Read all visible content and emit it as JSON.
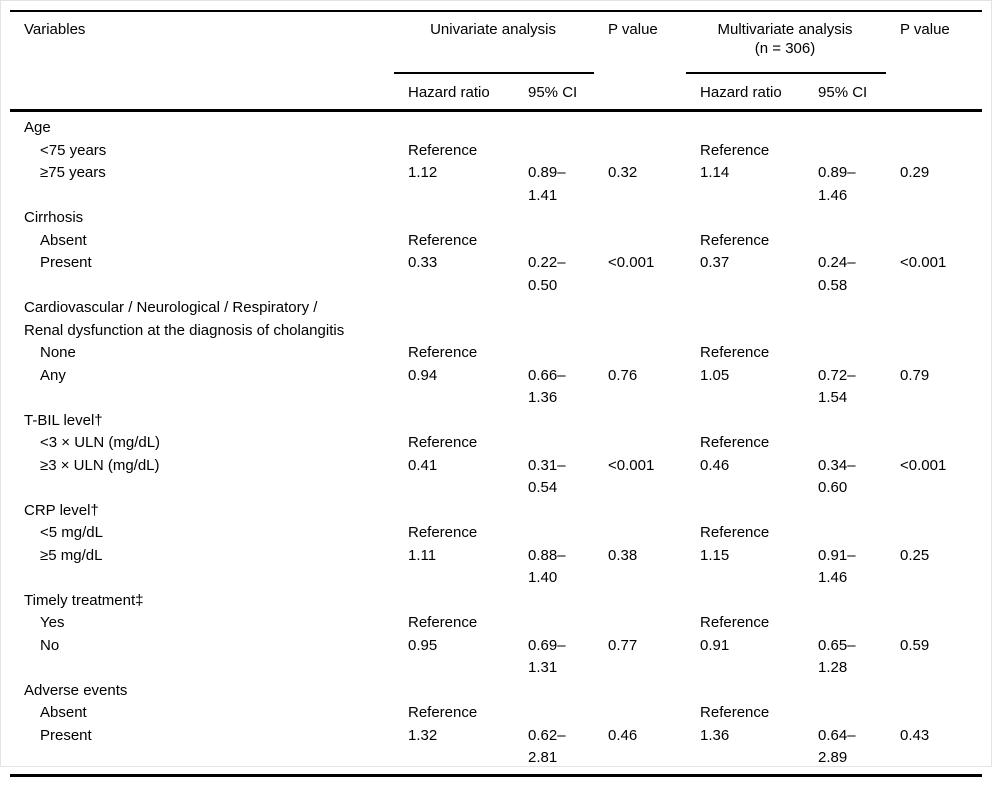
{
  "page": {
    "background_color": "#ffffff",
    "text_color": "#000000",
    "rule_color": "#000000"
  },
  "table": {
    "header": {
      "variables": "Variables",
      "univariate_group": "Univariate analysis",
      "p_value_univariate": "P value",
      "multivariate_group": "Multivariate analysis\n(n = 306)",
      "p_value_multivariate": "P value",
      "hazard_ratio_univariate": "Hazard ratio",
      "ci_univariate": "95% CI",
      "hazard_ratio_multivariate": "Hazard ratio",
      "ci_multivariate": "95% CI"
    },
    "sections": [
      {
        "label": "Age",
        "rows": [
          {
            "variable": "<75 years",
            "uni_hr": "Reference",
            "uni_ci": "",
            "uni_p": "",
            "multi_hr": "Reference",
            "multi_ci": "",
            "multi_p": ""
          },
          {
            "variable": "≥75 years",
            "uni_hr": "1.12",
            "uni_ci": "0.89–\n1.41",
            "uni_p": "0.32",
            "multi_hr": "1.14",
            "multi_ci": "0.89–\n1.46",
            "multi_p": "0.29"
          }
        ]
      },
      {
        "label": "Cirrhosis",
        "rows": [
          {
            "variable": "Absent",
            "uni_hr": "Reference",
            "uni_ci": "",
            "uni_p": "",
            "multi_hr": "Reference",
            "multi_ci": "",
            "multi_p": ""
          },
          {
            "variable": "Present",
            "uni_hr": "0.33",
            "uni_ci": "0.22–\n0.50",
            "uni_p": "<0.001",
            "multi_hr": "0.37",
            "multi_ci": "0.24–\n0.58",
            "multi_p": "<0.001"
          }
        ]
      },
      {
        "label": "Cardiovascular / Neurological / Respiratory /\nRenal dysfunction at the diagnosis of cholangitis",
        "rows": [
          {
            "variable": "None",
            "uni_hr": "Reference",
            "uni_ci": "",
            "uni_p": "",
            "multi_hr": "Reference",
            "multi_ci": "",
            "multi_p": ""
          },
          {
            "variable": "Any",
            "uni_hr": "0.94",
            "uni_ci": "0.66–\n1.36",
            "uni_p": "0.76",
            "multi_hr": "1.05",
            "multi_ci": "0.72–\n1.54",
            "multi_p": "0.79"
          }
        ]
      },
      {
        "label": "T-BIL level†",
        "rows": [
          {
            "variable": "<3 × ULN (mg/dL)",
            "uni_hr": "Reference",
            "uni_ci": "",
            "uni_p": "",
            "multi_hr": "Reference",
            "multi_ci": "",
            "multi_p": ""
          },
          {
            "variable": "≥3 × ULN (mg/dL)",
            "uni_hr": "0.41",
            "uni_ci": "0.31–\n0.54",
            "uni_p": "<0.001",
            "multi_hr": "0.46",
            "multi_ci": "0.34–\n0.60",
            "multi_p": "<0.001"
          }
        ]
      },
      {
        "label": "CRP level†",
        "rows": [
          {
            "variable": "<5 mg/dL",
            "uni_hr": "Reference",
            "uni_ci": "",
            "uni_p": "",
            "multi_hr": "Reference",
            "multi_ci": "",
            "multi_p": ""
          },
          {
            "variable": "≥5 mg/dL",
            "uni_hr": "1.11",
            "uni_ci": "0.88–\n1.40",
            "uni_p": "0.38",
            "multi_hr": "1.15",
            "multi_ci": "0.91–\n1.46",
            "multi_p": "0.25"
          }
        ]
      },
      {
        "label": "Timely treatment‡",
        "rows": [
          {
            "variable": "Yes",
            "uni_hr": "Reference",
            "uni_ci": "",
            "uni_p": "",
            "multi_hr": "Reference",
            "multi_ci": "",
            "multi_p": ""
          },
          {
            "variable": "No",
            "uni_hr": "0.95",
            "uni_ci": "0.69–\n1.31",
            "uni_p": "0.77",
            "multi_hr": "0.91",
            "multi_ci": "0.65–\n1.28",
            "multi_p": "0.59"
          }
        ]
      },
      {
        "label": "Adverse events",
        "rows": [
          {
            "variable": "Absent",
            "uni_hr": "Reference",
            "uni_ci": "",
            "uni_p": "",
            "multi_hr": "Reference",
            "multi_ci": "",
            "multi_p": ""
          },
          {
            "variable": "Present",
            "uni_hr": "1.32",
            "uni_ci": "0.62–\n2.81",
            "uni_p": "0.46",
            "multi_hr": "1.36",
            "multi_ci": "0.64–\n2.89",
            "multi_p": "0.43"
          }
        ]
      }
    ]
  }
}
